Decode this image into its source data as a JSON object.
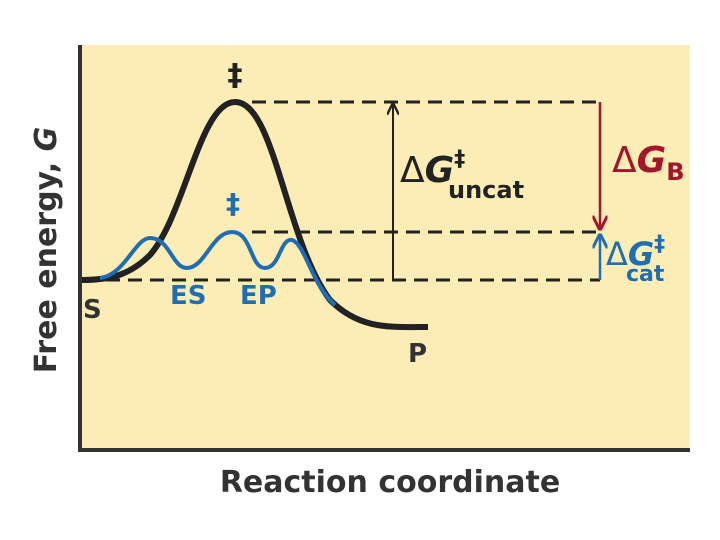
{
  "axes": {
    "y_label": {
      "text": "Free energy, ",
      "symbol": "G"
    },
    "x_label": "Reaction coordinate"
  },
  "labels": {
    "uncat_transition": "‡",
    "cat_transition": "‡",
    "substrate": "S",
    "es": "ES",
    "ep": "EP",
    "product": "P",
    "dg_uncat": {
      "delta": "Δ",
      "symbol": "G",
      "superscript": "‡",
      "subscript": "uncat"
    },
    "dg_b": {
      "delta": "Δ",
      "symbol": "G",
      "subscript": "B"
    },
    "dg_cat": {
      "delta": "Δ",
      "symbol": "G",
      "superscript": "‡",
      "subscript": "cat"
    }
  }
}
